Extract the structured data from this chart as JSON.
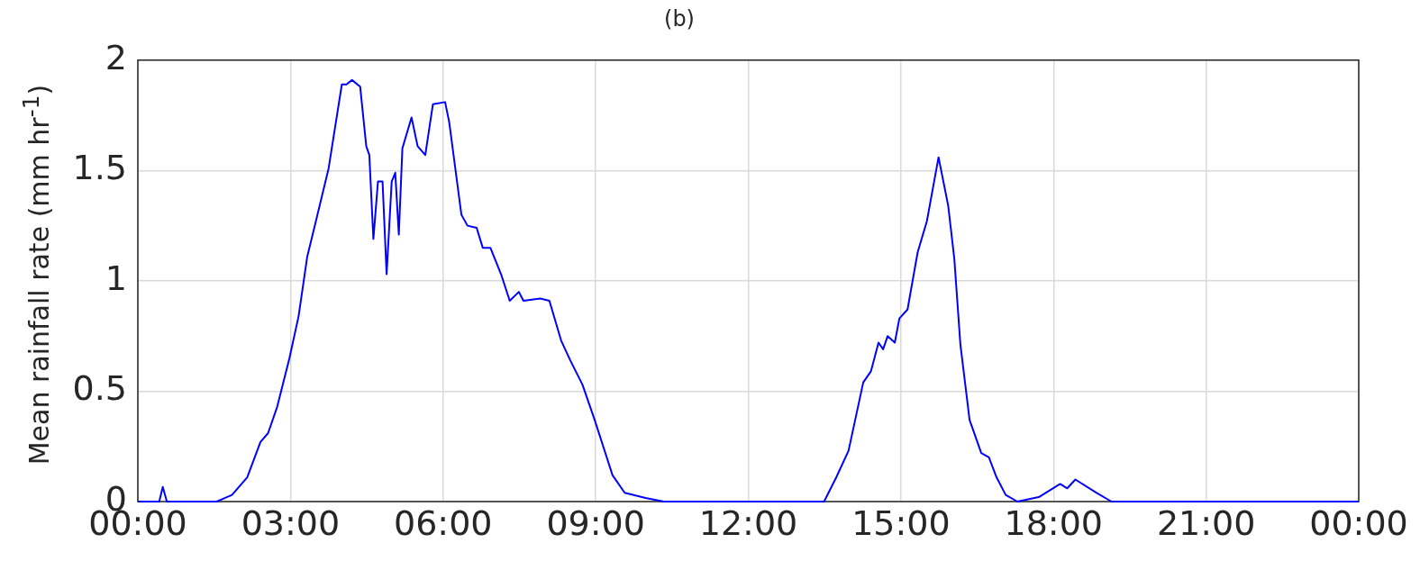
{
  "chart_data": {
    "type": "line",
    "title": "(b)",
    "ylabel": "Mean rainfall rate (mm hr$^{-1}$)",
    "x": [
      0,
      0.42,
      0.49,
      0.57,
      1.55,
      1.85,
      2.15,
      2.41,
      2.56,
      2.74,
      2.98,
      3.16,
      3.33,
      3.51,
      3.75,
      4.01,
      4.1,
      4.21,
      4.37,
      4.49,
      4.55,
      4.63,
      4.72,
      4.81,
      4.89,
      4.99,
      5.06,
      5.13,
      5.2,
      5.38,
      5.5,
      5.65,
      5.8,
      6.04,
      6.12,
      6.36,
      6.48,
      6.66,
      6.78,
      6.93,
      7.14,
      7.31,
      7.49,
      7.58,
      7.91,
      8.09,
      8.32,
      8.5,
      8.74,
      8.98,
      9.33,
      9.57,
      9.98,
      10.34,
      13.49,
      13.73,
      13.97,
      14.26,
      14.41,
      14.56,
      14.65,
      14.74,
      14.88,
      14.97,
      15.13,
      15.33,
      15.51,
      15.74,
      15.93,
      16.05,
      16.17,
      16.35,
      16.58,
      16.73,
      16.88,
      17.06,
      17.29,
      17.71,
      18.13,
      18.27,
      18.43,
      18.84,
      19.14,
      24
    ],
    "values": [
      0,
      0,
      0.066,
      0,
      0,
      0.03,
      0.11,
      0.27,
      0.31,
      0.43,
      0.65,
      0.84,
      1.11,
      1.28,
      1.51,
      1.89,
      1.89,
      1.91,
      1.88,
      1.61,
      1.57,
      1.19,
      1.45,
      1.45,
      1.03,
      1.45,
      1.49,
      1.21,
      1.6,
      1.74,
      1.61,
      1.57,
      1.8,
      1.81,
      1.72,
      1.3,
      1.25,
      1.24,
      1.15,
      1.15,
      1.03,
      0.91,
      0.95,
      0.91,
      0.92,
      0.91,
      0.73,
      0.64,
      0.53,
      0.37,
      0.12,
      0.04,
      0.016,
      0,
      0,
      0.11,
      0.23,
      0.54,
      0.59,
      0.72,
      0.69,
      0.75,
      0.72,
      0.83,
      0.87,
      1.13,
      1.27,
      1.56,
      1.34,
      1.1,
      0.71,
      0.37,
      0.22,
      0.2,
      0.11,
      0.03,
      0,
      0.02,
      0.08,
      0.06,
      0.1,
      0.04,
      0,
      0
    ],
    "color": "#0000ff",
    "xlim": [
      0,
      24
    ],
    "xticks": [
      {
        "value": 0,
        "label": "00:00"
      },
      {
        "value": 3,
        "label": "03:00"
      },
      {
        "value": 6,
        "label": "06:00"
      },
      {
        "value": 9,
        "label": "09:00"
      },
      {
        "value": 12,
        "label": "12:00"
      },
      {
        "value": 15,
        "label": "15:00"
      },
      {
        "value": 18,
        "label": "18:00"
      },
      {
        "value": 21,
        "label": "21:00"
      },
      {
        "value": 24,
        "label": "00:00"
      }
    ],
    "ylim": [
      0,
      2
    ],
    "yticks": [
      0,
      0.5,
      1,
      1.5,
      2
    ],
    "grid": true
  }
}
